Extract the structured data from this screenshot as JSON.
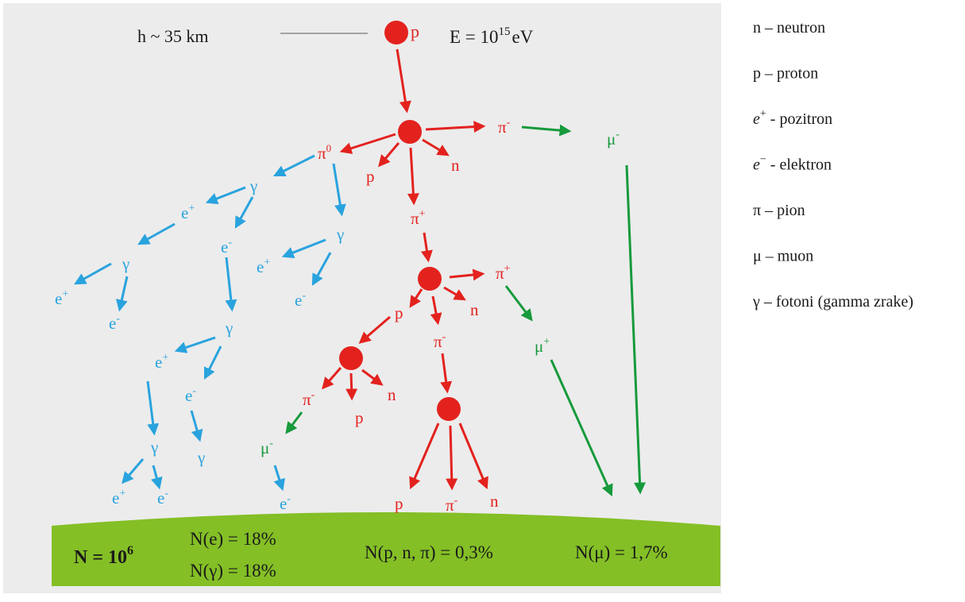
{
  "header": {
    "height_label": "h ~ 35 km",
    "energy_prefix": "E = 10",
    "energy_exponent": "15",
    "energy_unit": "eV"
  },
  "particles": {
    "p": "p",
    "n": "n",
    "pi": "π",
    "mu": "μ",
    "gamma": "γ",
    "e": "e",
    "pi_zero_sup": "0",
    "plus": "+",
    "minus": "-"
  },
  "ground": {
    "total_prefix": "N = 10",
    "total_exponent": "6",
    "electrons": "N(e) = 18%",
    "photons": "N(γ) = 18%",
    "hadrons": "N(p, n, π) = 0,3%",
    "muons": "N(μ) = 1,7%"
  },
  "legend": [
    {
      "symbol": "n",
      "sup": "",
      "sep": " – ",
      "desc": "neutron"
    },
    {
      "symbol": "p",
      "sup": "",
      "sep": " – ",
      "desc": "proton"
    },
    {
      "symbol": "e",
      "sup": "+",
      "sep": " - ",
      "desc": "pozitron"
    },
    {
      "symbol": "e",
      "sup": "−",
      "sep": " - ",
      "desc": "elektron"
    },
    {
      "symbol": "π",
      "sup": "",
      "sep": " – ",
      "desc": "pion"
    },
    {
      "symbol": "μ",
      "sup": "",
      "sep": " – ",
      "desc": "muon"
    },
    {
      "symbol": "γ",
      "sup": "",
      "sep": " – ",
      "desc": "fotoni (gamma zrake)"
    }
  ],
  "colors": {
    "background": "#ececec",
    "hadron": "#e3221e",
    "electromagnetic": "#29a3de",
    "muon": "#179a3c",
    "ground": "#84bf26"
  }
}
